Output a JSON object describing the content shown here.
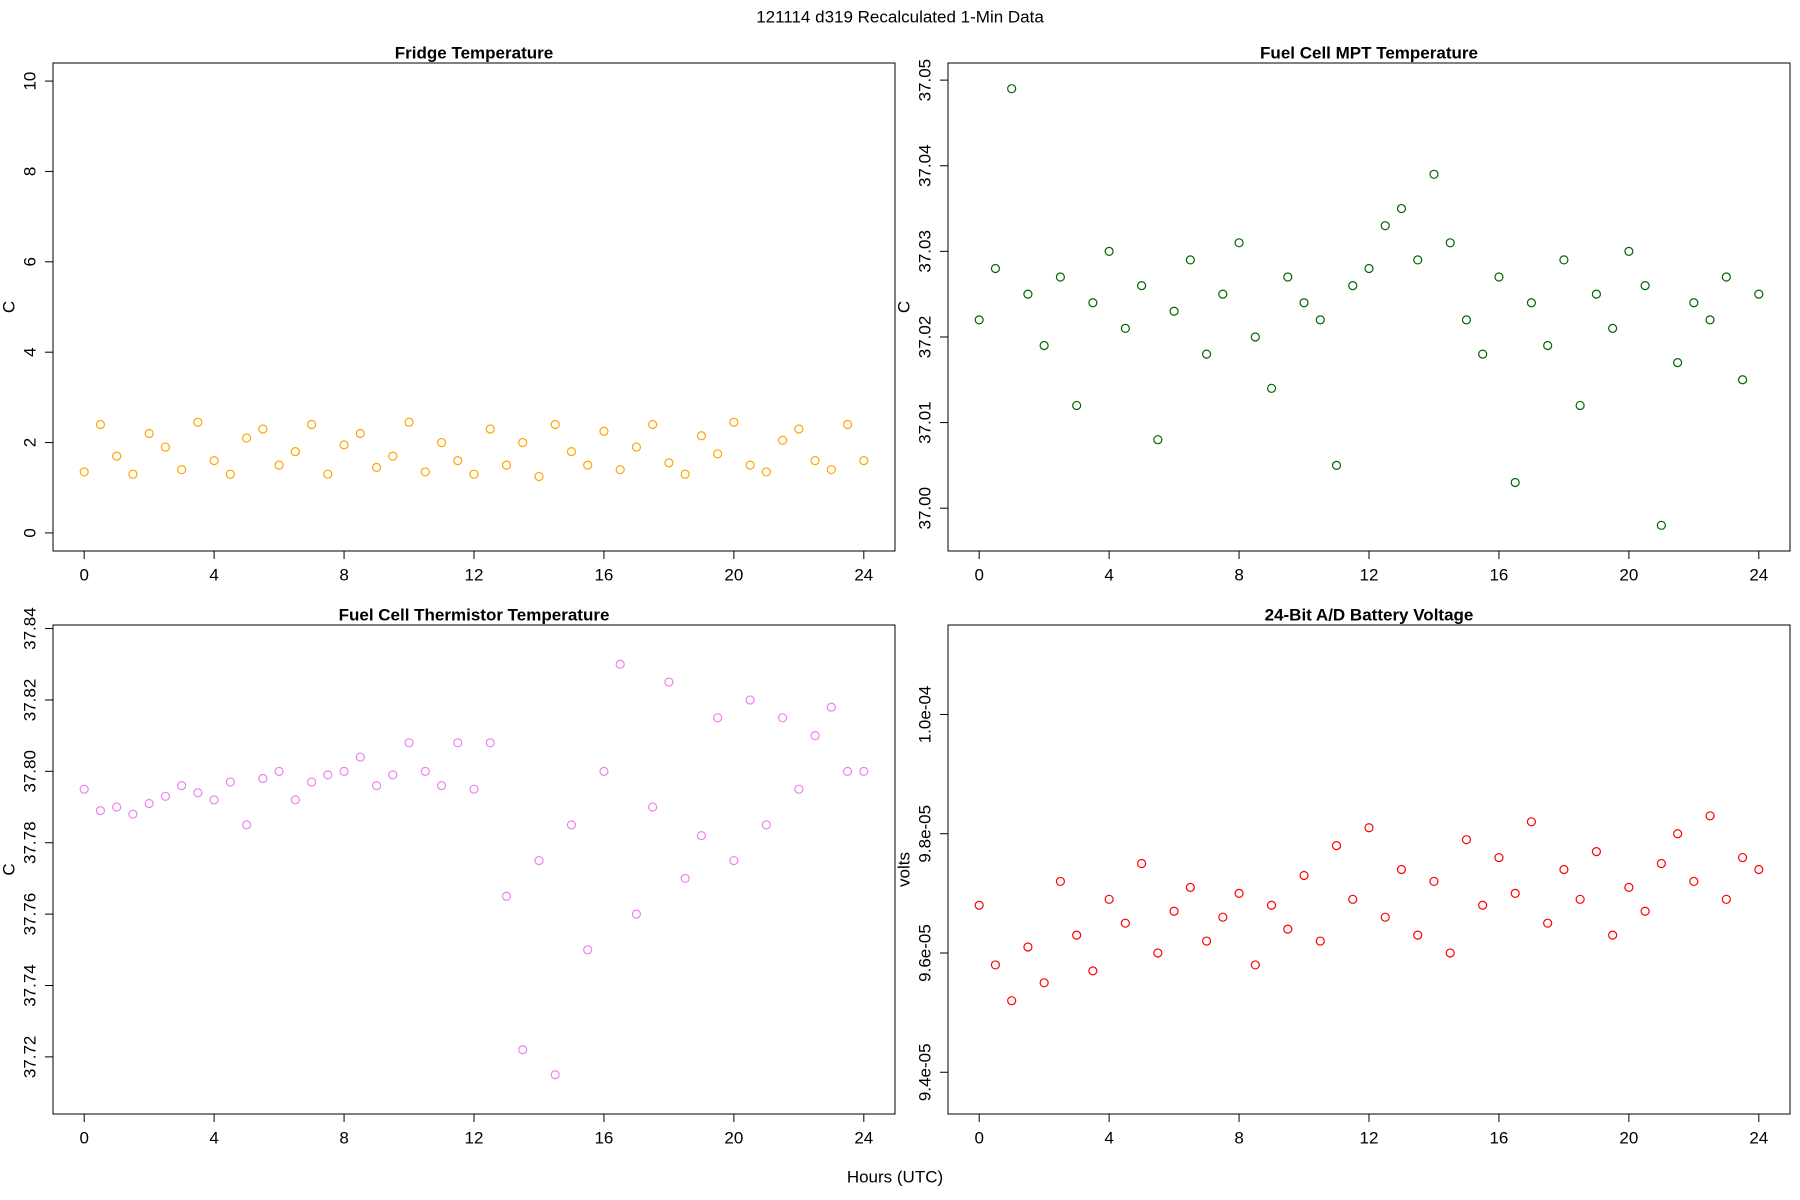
{
  "title": "121114   d319   Recalculated 1-Min Data",
  "xlabel": "Hours (UTC)",
  "chart_data": [
    {
      "type": "scatter",
      "title": "Fridge Temperature",
      "ylabel": "C",
      "x": [
        0,
        0.5,
        1,
        1.5,
        2,
        2.5,
        3,
        3.5,
        4,
        4.5,
        5,
        5.5,
        6,
        6.5,
        7,
        7.5,
        8,
        8.5,
        9,
        9.5,
        10,
        10.5,
        11,
        11.5,
        12,
        12.5,
        13,
        13.5,
        14,
        14.5,
        15,
        15.5,
        16,
        16.5,
        17,
        17.5,
        18,
        18.5,
        19,
        19.5,
        20,
        20.5,
        21,
        21.5,
        22,
        22.5,
        23,
        23.5,
        24
      ],
      "series": [
        {
          "color": "#ffa500",
          "values": [
            1.35,
            2.4,
            1.7,
            1.3,
            2.2,
            1.9,
            1.4,
            2.45,
            1.6,
            1.3,
            2.1,
            2.3,
            1.5,
            1.8,
            2.4,
            1.3,
            1.95,
            2.2,
            1.45,
            1.7,
            2.45,
            1.35,
            2.0,
            1.6,
            1.3,
            2.3,
            1.5,
            2.0,
            1.25,
            2.4,
            1.8,
            1.5,
            2.25,
            1.4,
            1.9,
            2.4,
            1.55,
            1.3,
            2.15,
            1.75,
            2.45,
            1.5,
            1.35,
            2.05,
            2.3,
            1.6,
            1.4,
            2.4,
            1.6
          ]
        }
      ],
      "xlim": [
        -0.96,
        24.96
      ],
      "xticks": [
        0,
        4,
        8,
        12,
        16,
        20,
        24
      ],
      "ylim": [
        -0.4,
        10.4
      ],
      "yticks": [
        0,
        2,
        4,
        6,
        8,
        10
      ]
    },
    {
      "type": "scatter",
      "title": "Fuel Cell MPT Temperature",
      "ylabel": "C",
      "x": [
        0,
        0.5,
        1,
        1.5,
        2,
        2.5,
        3,
        3.5,
        4,
        4.5,
        5,
        5.5,
        6,
        6.5,
        7,
        7.5,
        8,
        8.5,
        9,
        9.5,
        10,
        10.5,
        11,
        11.5,
        12,
        12.5,
        13,
        13.5,
        14,
        14.5,
        15,
        15.5,
        16,
        16.5,
        17,
        17.5,
        18,
        18.5,
        19,
        19.5,
        20,
        20.5,
        21,
        21.5,
        22,
        22.5,
        23,
        23.5,
        24
      ],
      "series": [
        {
          "color": "#006400",
          "values": [
            37.022,
            37.028,
            37.049,
            37.025,
            37.019,
            37.027,
            37.012,
            37.024,
            37.03,
            37.021,
            37.026,
            37.008,
            37.023,
            37.029,
            37.018,
            37.025,
            37.031,
            37.02,
            37.014,
            37.027,
            37.024,
            37.022,
            37.005,
            37.026,
            37.028,
            37.033,
            37.035,
            37.029,
            37.039,
            37.031,
            37.022,
            37.018,
            37.027,
            37.003,
            37.024,
            37.019,
            37.029,
            37.012,
            37.025,
            37.021,
            37.03,
            37.026,
            36.998,
            37.017,
            37.024,
            37.022,
            37.027,
            37.015,
            37.025
          ]
        }
      ],
      "xlim": [
        -0.96,
        24.96
      ],
      "xticks": [
        0,
        4,
        8,
        12,
        16,
        20,
        24
      ],
      "ylim": [
        36.995,
        37.052
      ],
      "yticks": [
        {
          "value": 37.0,
          "label": "37.00"
        },
        37.01,
        37.02,
        37.03,
        37.04,
        37.05
      ]
    },
    {
      "type": "scatter",
      "title": "Fuel Cell Thermistor Temperature",
      "ylabel": "C",
      "x": [
        0,
        0.5,
        1,
        1.5,
        2,
        2.5,
        3,
        3.5,
        4,
        4.5,
        5,
        5.5,
        6,
        6.5,
        7,
        7.5,
        8,
        8.5,
        9,
        9.5,
        10,
        10.5,
        11,
        11.5,
        12,
        12.5,
        13,
        13.5,
        14,
        14.5,
        15,
        15.5,
        16,
        16.5,
        17,
        17.5,
        18,
        18.5,
        19,
        19.5,
        20,
        20.5,
        21,
        21.5,
        22,
        22.5,
        23,
        23.5,
        24
      ],
      "series": [
        {
          "color": "#ee82ee",
          "values": [
            37.795,
            37.789,
            37.79,
            37.788,
            37.791,
            37.793,
            37.796,
            37.794,
            37.792,
            37.797,
            37.785,
            37.798,
            37.8,
            37.792,
            37.797,
            37.799,
            37.8,
            37.804,
            37.796,
            37.799,
            37.808,
            37.8,
            37.796,
            37.808,
            37.795,
            37.808,
            37.765,
            37.722,
            37.775,
            37.715,
            37.785,
            37.75,
            37.8,
            37.83,
            37.76,
            37.79,
            37.825,
            37.77,
            37.782,
            37.815,
            37.775,
            37.82,
            37.785,
            37.815,
            37.795,
            37.81,
            37.818,
            37.8,
            37.8
          ]
        }
      ],
      "xlim": [
        -0.96,
        24.96
      ],
      "xticks": [
        0,
        4,
        8,
        12,
        16,
        20,
        24
      ],
      "ylim": [
        37.704,
        37.841
      ],
      "yticks": [
        37.72,
        37.74,
        37.76,
        37.78,
        {
          "value": 37.8,
          "label": "37.80"
        },
        37.82,
        37.84
      ]
    },
    {
      "type": "scatter",
      "title": "24-Bit A/D Battery Voltage",
      "ylabel": "volts",
      "x": [
        0,
        0.5,
        1,
        1.5,
        2,
        2.5,
        3,
        3.5,
        4,
        4.5,
        5,
        5.5,
        6,
        6.5,
        7,
        7.5,
        8,
        8.5,
        9,
        9.5,
        10,
        10.5,
        11,
        11.5,
        12,
        12.5,
        13,
        13.5,
        14,
        14.5,
        15,
        15.5,
        16,
        16.5,
        17,
        17.5,
        18,
        18.5,
        19,
        19.5,
        20,
        20.5,
        21,
        21.5,
        22,
        22.5,
        23,
        23.5,
        24
      ],
      "series": [
        {
          "color": "#ff0000",
          "values": [
            9.68e-05,
            9.58e-05,
            9.52e-05,
            9.61e-05,
            9.55e-05,
            9.72e-05,
            9.63e-05,
            9.57e-05,
            9.69e-05,
            9.65e-05,
            9.75e-05,
            9.6e-05,
            9.67e-05,
            9.71e-05,
            9.62e-05,
            9.66e-05,
            9.7e-05,
            9.58e-05,
            9.68e-05,
            9.64e-05,
            9.73e-05,
            9.62e-05,
            9.78e-05,
            9.69e-05,
            9.81e-05,
            9.66e-05,
            9.74e-05,
            9.63e-05,
            9.72e-05,
            9.6e-05,
            9.79e-05,
            9.68e-05,
            9.76e-05,
            9.7e-05,
            9.82e-05,
            9.65e-05,
            9.74e-05,
            9.69e-05,
            9.77e-05,
            9.63e-05,
            9.71e-05,
            9.67e-05,
            9.75e-05,
            9.8e-05,
            9.72e-05,
            9.83e-05,
            9.69e-05,
            9.76e-05,
            9.74e-05
          ]
        }
      ],
      "xlim": [
        -0.96,
        24.96
      ],
      "xticks": [
        0,
        4,
        8,
        12,
        16,
        20,
        24
      ],
      "ylim": [
        9.33e-05,
        0.0001015
      ],
      "yticks": [
        {
          "value": 9.4e-05,
          "label": "9.4e-05"
        },
        {
          "value": 9.6e-05,
          "label": "9.6e-05"
        },
        {
          "value": 9.8e-05,
          "label": "9.8e-05"
        },
        {
          "value": 0.0001,
          "label": "1.0e-04"
        }
      ]
    }
  ]
}
